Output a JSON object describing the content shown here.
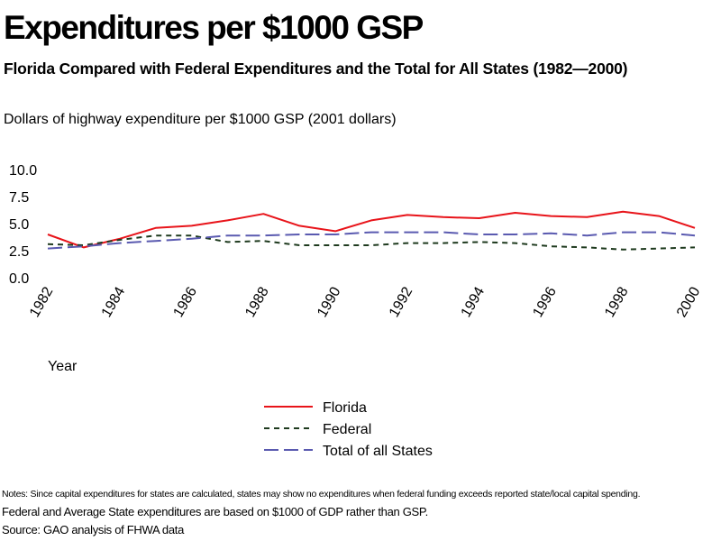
{
  "title": "Expenditures per $1000 GSP",
  "subtitle": "Florida Compared with Federal Expenditures and the Total for All States (1982—2000)",
  "notes": [
    "Notes: Since capital expenditures for states are calculated, states may show no expenditures when federal funding exceeds reported state/local capital spending.",
    "Federal and Average State expenditures are based on $1000 of GDP rather than GSP.",
    "Source: GAO analysis of FHWA data"
  ],
  "chart_data": {
    "type": "line",
    "ylabel": "Dollars of highway expenditure per $1000 GSP (2001 dollars)",
    "xlabel": "Year",
    "x": [
      1982,
      1983,
      1984,
      1985,
      1986,
      1987,
      1988,
      1989,
      1990,
      1991,
      1992,
      1993,
      1994,
      1995,
      1996,
      1997,
      1998,
      1999,
      2000
    ],
    "xticks": [
      "1982",
      "1984",
      "1986",
      "1988",
      "1990",
      "1992",
      "1994",
      "1996",
      "1998",
      "2000"
    ],
    "yticks": [
      "10.0",
      "7.5",
      "5.0",
      "2.5",
      "0.0"
    ],
    "ylim": [
      0,
      10
    ],
    "grid": false,
    "legend_position": "bottom-center",
    "series": [
      {
        "name": "Florida",
        "color": "#e8141a",
        "dash": "solid",
        "values": [
          4.0,
          2.8,
          3.6,
          4.6,
          4.8,
          5.3,
          5.9,
          4.8,
          4.3,
          5.3,
          5.8,
          5.6,
          5.5,
          6.0,
          5.7,
          5.6,
          6.1,
          5.7,
          4.6
        ]
      },
      {
        "name": "Federal",
        "color": "#1e3a1e",
        "dash": "dashed",
        "values": [
          3.1,
          3.0,
          3.5,
          3.9,
          3.9,
          3.3,
          3.4,
          3.0,
          3.0,
          3.0,
          3.2,
          3.2,
          3.3,
          3.2,
          2.9,
          2.8,
          2.6,
          2.7,
          2.8
        ]
      },
      {
        "name": "Total of all States",
        "color": "#5a5ab0",
        "dash": "longdash",
        "values": [
          2.7,
          2.9,
          3.2,
          3.4,
          3.6,
          3.9,
          3.9,
          4.0,
          4.0,
          4.2,
          4.2,
          4.2,
          4.0,
          4.0,
          4.1,
          3.9,
          4.2,
          4.2,
          3.9
        ]
      }
    ]
  }
}
